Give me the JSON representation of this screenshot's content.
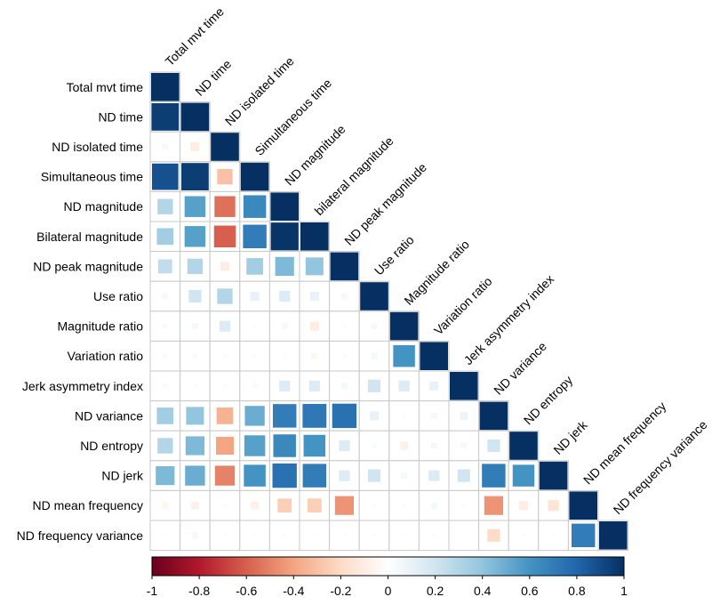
{
  "chart_data": {
    "type": "heatmap",
    "subtype": "correlation-matrix-lower-triangle",
    "variables": [
      "Total mvt time",
      "ND time",
      "ND isolated time",
      "Simultaneous time",
      "ND magnitude",
      "Bilateral magnitude",
      "ND peak magnitude",
      "Use ratio",
      "Magnitude ratio",
      "Variation ratio",
      "Jerk asymmetry index",
      "ND variance",
      "ND entropy",
      "ND jerk",
      "ND mean frequency",
      "ND frequency variance"
    ],
    "column_labels": [
      "Total mvt time",
      "ND time",
      "ND isolated time",
      "Simultaneous time",
      "ND magnitude",
      "bilateral magnitude",
      "ND peak magnitude",
      "Use ratio",
      "Magnitude ratio",
      "Variation ratio",
      "Jerk asymmetry index",
      "ND variance",
      "ND entropy",
      "ND jerk",
      "ND mean frequency",
      "ND frequency variance"
    ],
    "correlations": [
      [
        1
      ],
      [
        0.95,
        1
      ],
      [
        0.05,
        -0.1,
        1
      ],
      [
        0.88,
        0.95,
        -0.3,
        1
      ],
      [
        0.3,
        0.55,
        -0.55,
        0.65,
        1
      ],
      [
        0.35,
        0.55,
        -0.6,
        0.7,
        0.98,
        1
      ],
      [
        0.25,
        0.3,
        -0.1,
        0.35,
        0.45,
        0.4,
        1
      ],
      [
        0.05,
        0.2,
        0.3,
        0.1,
        0.15,
        0.1,
        0.05,
        1
      ],
      [
        0.03,
        0.05,
        0.15,
        0.02,
        0.05,
        -0.1,
        0.02,
        0.05,
        1
      ],
      [
        0.03,
        0.03,
        0.02,
        0.02,
        0.02,
        -0.05,
        0.02,
        0.05,
        0.6,
        1
      ],
      [
        -0.03,
        0.02,
        0.02,
        0.03,
        0.15,
        0.15,
        0.05,
        0.2,
        0.15,
        0.1,
        1
      ],
      [
        0.35,
        0.4,
        -0.35,
        0.5,
        0.7,
        0.72,
        0.75,
        0.1,
        0.02,
        0.05,
        0.08,
        1
      ],
      [
        0.3,
        0.45,
        -0.4,
        0.55,
        0.65,
        0.6,
        0.15,
        0.03,
        -0.08,
        0.05,
        0.05,
        0.2,
        1
      ],
      [
        0.45,
        0.5,
        -0.5,
        0.6,
        0.75,
        0.7,
        0.15,
        0.2,
        0.05,
        0.15,
        0.2,
        0.7,
        0.6,
        1
      ],
      [
        -0.05,
        -0.08,
        0.02,
        -0.08,
        -0.25,
        -0.25,
        -0.45,
        0.02,
        0.02,
        0.05,
        0.02,
        -0.45,
        -0.1,
        -0.15,
        1
      ],
      [
        0.02,
        0.05,
        0.02,
        0.02,
        0.02,
        0.02,
        0.02,
        0.02,
        0.02,
        0.02,
        0.02,
        -0.2,
        0.02,
        0.02,
        0.7,
        1
      ]
    ],
    "colorbar": {
      "range": [
        -1,
        1
      ],
      "ticks": [
        "-1",
        "-0.8",
        "-0.6",
        "-0.4",
        "-0.2",
        "0",
        "0.2",
        "0.4",
        "0.6",
        "0.8",
        "1"
      ],
      "colors": [
        "#67001f",
        "#b2182b",
        "#d6604d",
        "#f4a582",
        "#fddbc7",
        "#ffffff",
        "#d1e5f0",
        "#92c5de",
        "#4393c3",
        "#2166ac",
        "#053061"
      ]
    },
    "title": "",
    "xlabel": "",
    "ylabel": "",
    "legend": "bottom"
  }
}
